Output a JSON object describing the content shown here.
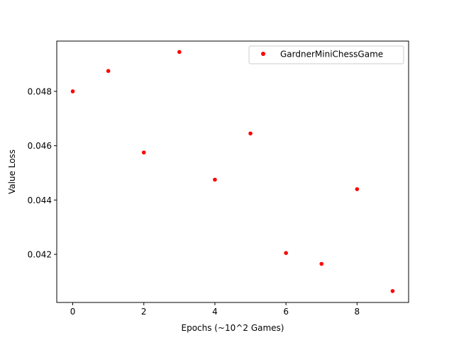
{
  "chart_data": {
    "type": "scatter",
    "xlabel": "Epochs (~10^2 Games)",
    "ylabel": "Value Loss",
    "xlim": [
      -0.45,
      9.45
    ],
    "ylim": [
      0.04023,
      0.04985
    ],
    "x_ticks": [
      0,
      2,
      4,
      6,
      8
    ],
    "y_ticks": [
      0.042,
      0.044,
      0.046,
      0.048
    ],
    "x_tick_labels": [
      "0",
      "2",
      "4",
      "6",
      "8"
    ],
    "y_tick_labels": [
      "0.042",
      "0.044",
      "0.046",
      "0.048"
    ],
    "grid": false,
    "legend_position": "top-right",
    "series": [
      {
        "name": "GardnerMiniChessGame",
        "color": "#ff0000",
        "marker": "circle",
        "x": [
          0,
          1,
          2,
          3,
          4,
          5,
          6,
          7,
          8,
          9
        ],
        "y": [
          0.048,
          0.04875,
          0.04575,
          0.04945,
          0.04475,
          0.04645,
          0.04205,
          0.04165,
          0.0444,
          0.04065
        ]
      }
    ]
  }
}
